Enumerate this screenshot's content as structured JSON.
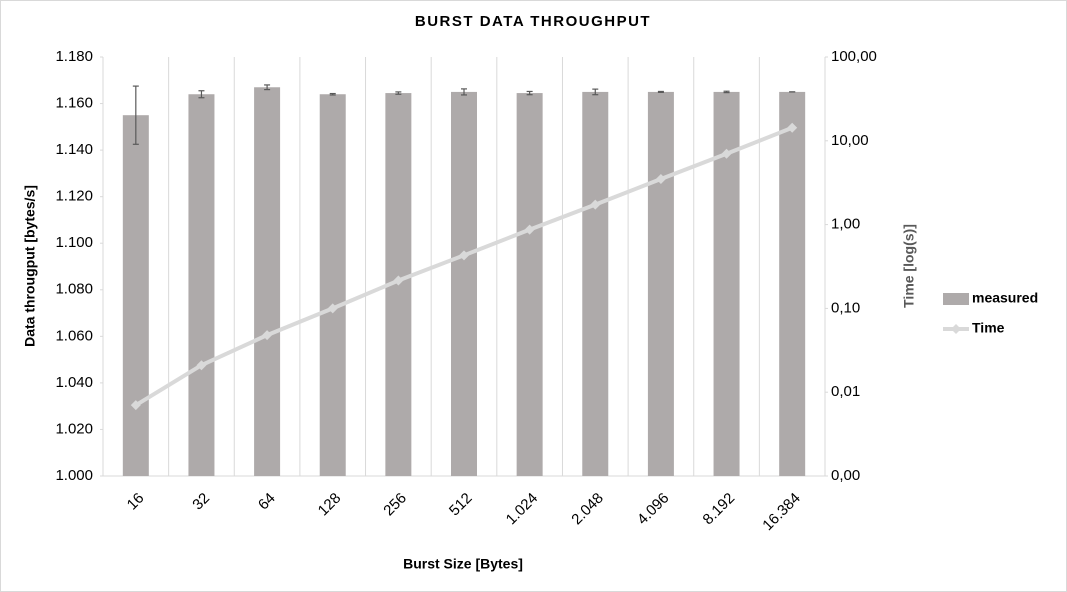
{
  "chart_data": {
    "type": "bar",
    "title": "BURST DATA THROUGHPUT",
    "x_label": "Burst Size [Bytes]",
    "y_label": "Data througput [bytes/s]",
    "y2_label": "Time [log(s)]",
    "categories": [
      "16",
      "32",
      "64",
      "128",
      "256",
      "512",
      "1.024",
      "2.048",
      "4.096",
      "8.192",
      "16.384"
    ],
    "series": [
      {
        "name": "measured",
        "type": "bar",
        "color": "#aeaaaa",
        "values": [
          1155,
          1164,
          1167,
          1164,
          1164.5,
          1165,
          1164.5,
          1165,
          1165,
          1165,
          1165
        ],
        "errors": [
          12.5,
          1.5,
          1,
          0.3,
          0.5,
          1.3,
          0.7,
          1.2,
          0.2,
          0.3,
          0
        ]
      },
      {
        "name": "Time",
        "type": "line",
        "axis": "y2",
        "color": "#d9d9d9",
        "values": [
          0.007,
          0.021,
          0.048,
          0.1,
          0.215,
          0.43,
          0.87,
          1.73,
          3.5,
          7.0,
          14.3
        ]
      }
    ],
    "ylim": [
      1000,
      1180
    ],
    "yticks": [
      {
        "value": 1000,
        "label": "1.000"
      },
      {
        "value": 1020,
        "label": "1.020"
      },
      {
        "value": 1040,
        "label": "1.040"
      },
      {
        "value": 1060,
        "label": "1.060"
      },
      {
        "value": 1080,
        "label": "1.080"
      },
      {
        "value": 1100,
        "label": "1.100"
      },
      {
        "value": 1120,
        "label": "1.120"
      },
      {
        "value": 1140,
        "label": "1.140"
      },
      {
        "value": 1160,
        "label": "1.160"
      },
      {
        "value": 1180,
        "label": "1.180"
      }
    ],
    "y2scale": "log",
    "y2lim": [
      0.001,
      100
    ],
    "y2ticks": [
      {
        "value": 0.001,
        "label": "0,00"
      },
      {
        "value": 0.01,
        "label": "0,01"
      },
      {
        "value": 0.1,
        "label": "0,10"
      },
      {
        "value": 1,
        "label": "1,00"
      },
      {
        "value": 10,
        "label": "10,00"
      },
      {
        "value": 100,
        "label": "100,00"
      }
    ],
    "legend": "right"
  }
}
